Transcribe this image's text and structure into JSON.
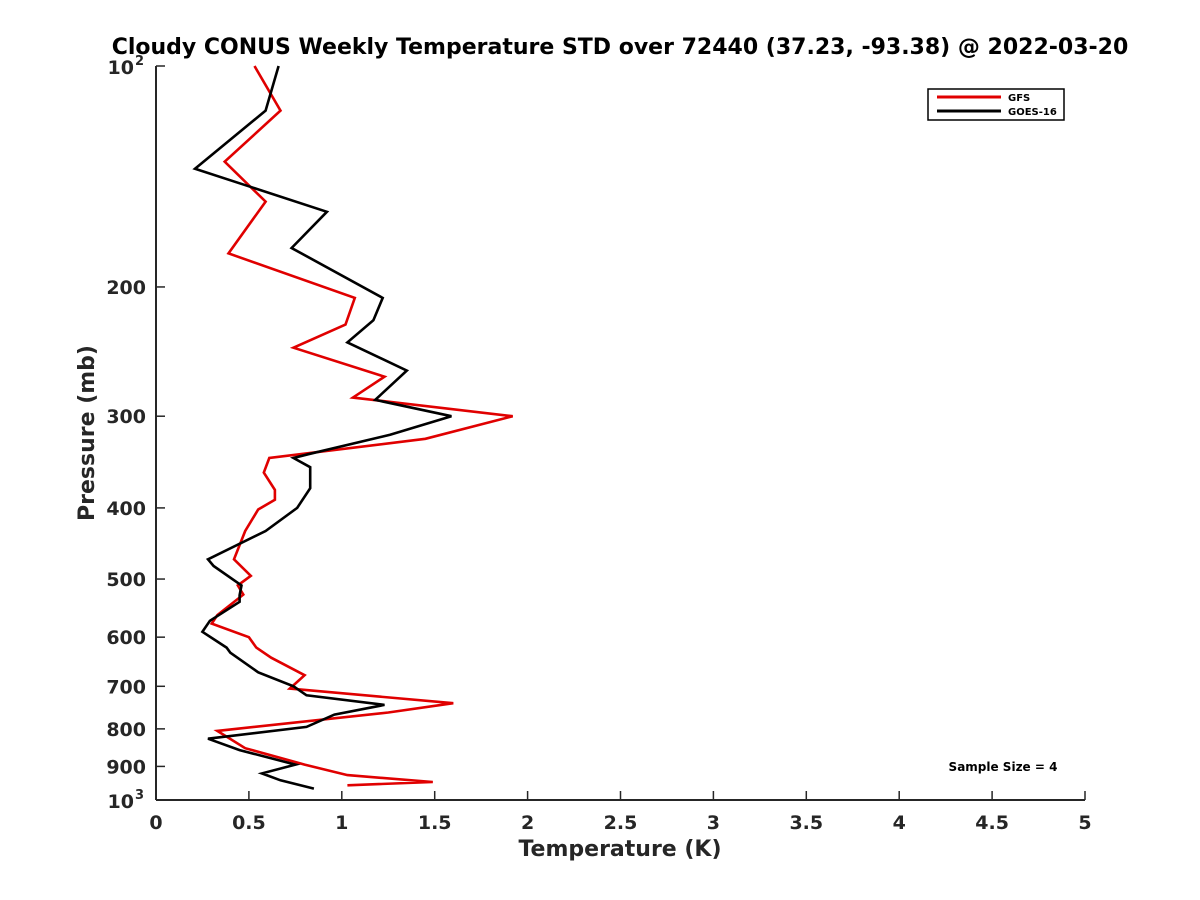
{
  "chart_data": {
    "type": "line",
    "title": "Cloudy CONUS Weekly Temperature STD over 72440 (37.23, -93.38) @ 2022-03-20",
    "xlabel": "Temperature (K)",
    "ylabel": "Pressure (mb)",
    "xlim": [
      0,
      5
    ],
    "ylim": [
      100,
      1000
    ],
    "y_scale": "log",
    "y_reversed": true,
    "grid": false,
    "legend_position": "top-right",
    "x_ticks": [
      "0",
      "0.5",
      "1",
      "1.5",
      "2",
      "2.5",
      "3",
      "3.5",
      "4",
      "4.5",
      "5"
    ],
    "y_ticks": [
      {
        "value": 100,
        "base": "10",
        "exp": "2"
      },
      {
        "value": 200,
        "label": "200"
      },
      {
        "value": 300,
        "label": "300"
      },
      {
        "value": 400,
        "label": "400"
      },
      {
        "value": 500,
        "label": "500"
      },
      {
        "value": 600,
        "label": "600"
      },
      {
        "value": 700,
        "label": "700"
      },
      {
        "value": 800,
        "label": "800"
      },
      {
        "value": 900,
        "label": "900"
      },
      {
        "value": 1000,
        "base": "10",
        "exp": "3"
      }
    ],
    "annotation": "Sample Size = 4",
    "series": [
      {
        "name": "GFS",
        "color": "#e00000",
        "points": [
          [
            0.53,
            100
          ],
          [
            0.67,
            115
          ],
          [
            0.37,
            135
          ],
          [
            0.59,
            153
          ],
          [
            0.39,
            180
          ],
          [
            1.07,
            207
          ],
          [
            1.02,
            225
          ],
          [
            0.74,
            242
          ],
          [
            1.23,
            265
          ],
          [
            1.06,
            283
          ],
          [
            1.92,
            300
          ],
          [
            1.45,
            322
          ],
          [
            0.61,
            342
          ],
          [
            0.58,
            358
          ],
          [
            0.64,
            378
          ],
          [
            0.64,
            390
          ],
          [
            0.55,
            402
          ],
          [
            0.48,
            430
          ],
          [
            0.42,
            470
          ],
          [
            0.51,
            495
          ],
          [
            0.44,
            510
          ],
          [
            0.47,
            525
          ],
          [
            0.33,
            560
          ],
          [
            0.3,
            575
          ],
          [
            0.5,
            600
          ],
          [
            0.54,
            620
          ],
          [
            0.62,
            640
          ],
          [
            0.8,
            676
          ],
          [
            0.72,
            705
          ],
          [
            1.6,
            738
          ],
          [
            1.25,
            760
          ],
          [
            0.33,
            805
          ],
          [
            0.48,
            850
          ],
          [
            0.8,
            895
          ],
          [
            1.03,
            925
          ],
          [
            1.49,
            945
          ],
          [
            1.03,
            955
          ]
        ]
      },
      {
        "name": "GOES-16",
        "color": "#000000",
        "points": [
          [
            0.66,
            100
          ],
          [
            0.59,
            115
          ],
          [
            0.21,
            138
          ],
          [
            0.92,
            158
          ],
          [
            0.73,
            177
          ],
          [
            1.22,
            207
          ],
          [
            1.17,
            222
          ],
          [
            1.03,
            238
          ],
          [
            1.35,
            260
          ],
          [
            1.18,
            285
          ],
          [
            1.59,
            300
          ],
          [
            1.26,
            318
          ],
          [
            0.82,
            338
          ],
          [
            0.74,
            342
          ],
          [
            0.83,
            352
          ],
          [
            0.83,
            376
          ],
          [
            0.76,
            400
          ],
          [
            0.59,
            430
          ],
          [
            0.28,
            470
          ],
          [
            0.31,
            480
          ],
          [
            0.46,
            510
          ],
          [
            0.45,
            526
          ],
          [
            0.45,
            537
          ],
          [
            0.29,
            570
          ],
          [
            0.25,
            590
          ],
          [
            0.38,
            620
          ],
          [
            0.4,
            630
          ],
          [
            0.55,
            670
          ],
          [
            0.74,
            700
          ],
          [
            0.81,
            720
          ],
          [
            1.23,
            742
          ],
          [
            0.96,
            765
          ],
          [
            0.81,
            795
          ],
          [
            0.28,
            825
          ],
          [
            0.45,
            855
          ],
          [
            0.75,
            895
          ],
          [
            0.57,
            920
          ],
          [
            0.67,
            940
          ],
          [
            0.85,
            965
          ]
        ]
      }
    ]
  }
}
